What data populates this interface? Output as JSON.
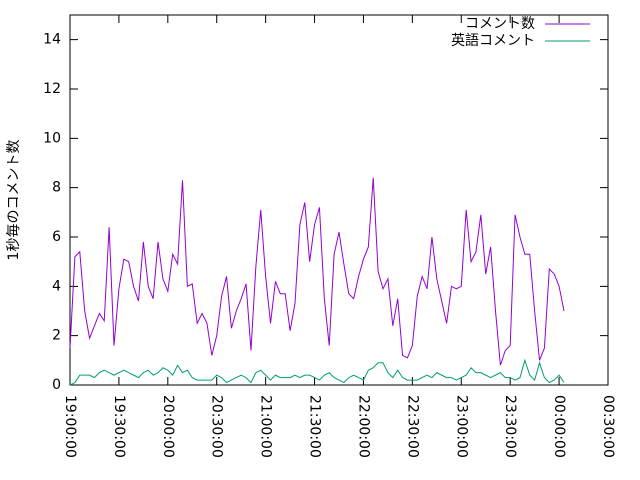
{
  "chart_data": {
    "type": "line",
    "ylabel": "1秒毎のコメント数",
    "x": [
      "19:00:00",
      "19:03:00",
      "19:06:00",
      "19:09:00",
      "19:12:00",
      "19:15:00",
      "19:18:00",
      "19:21:00",
      "19:24:00",
      "19:27:00",
      "19:30:00",
      "19:33:00",
      "19:36:00",
      "19:39:00",
      "19:42:00",
      "19:45:00",
      "19:48:00",
      "19:51:00",
      "19:54:00",
      "19:57:00",
      "20:00:00",
      "20:03:00",
      "20:06:00",
      "20:09:00",
      "20:12:00",
      "20:15:00",
      "20:18:00",
      "20:21:00",
      "20:24:00",
      "20:27:00",
      "20:30:00",
      "20:33:00",
      "20:36:00",
      "20:39:00",
      "20:42:00",
      "20:45:00",
      "20:48:00",
      "20:51:00",
      "20:54:00",
      "20:57:00",
      "21:00:00",
      "21:03:00",
      "21:06:00",
      "21:09:00",
      "21:12:00",
      "21:15:00",
      "21:18:00",
      "21:21:00",
      "21:24:00",
      "21:27:00",
      "21:30:00",
      "21:33:00",
      "21:36:00",
      "21:39:00",
      "21:42:00",
      "21:45:00",
      "21:48:00",
      "21:51:00",
      "21:54:00",
      "21:57:00",
      "22:00:00",
      "22:03:00",
      "22:06:00",
      "22:09:00",
      "22:12:00",
      "22:15:00",
      "22:18:00",
      "22:21:00",
      "22:24:00",
      "22:27:00",
      "22:30:00",
      "22:33:00",
      "22:36:00",
      "22:39:00",
      "22:42:00",
      "22:45:00",
      "22:48:00",
      "22:51:00",
      "22:54:00",
      "22:57:00",
      "23:00:00",
      "23:03:00",
      "23:06:00",
      "23:09:00",
      "23:12:00",
      "23:15:00",
      "23:18:00",
      "23:21:00",
      "23:24:00",
      "23:27:00",
      "23:30:00",
      "23:33:00",
      "23:36:00",
      "23:39:00",
      "23:42:00",
      "23:45:00",
      "23:48:00",
      "23:51:00",
      "23:54:00",
      "23:57:00",
      "00:00:00",
      "00:03:00"
    ],
    "series": [
      {
        "name": "コメント数",
        "color": "#9400d3",
        "values": [
          1.5,
          5.2,
          5.4,
          3,
          1.9,
          2.4,
          2.9,
          2.6,
          6.4,
          1.6,
          3.9,
          5.1,
          5,
          4,
          3.4,
          5.8,
          4,
          3.5,
          5.8,
          4.3,
          3.8,
          5.3,
          4.9,
          8.3,
          4,
          4.1,
          2.5,
          2.9,
          2.5,
          1.2,
          2,
          3.6,
          4.4,
          2.3,
          3,
          3.5,
          4.1,
          1.4,
          4.8,
          7.1,
          4.4,
          2.5,
          4.2,
          3.7,
          3.7,
          2.2,
          3.3,
          6.5,
          7.4,
          5,
          6.5,
          7.2,
          3.5,
          1.6,
          5.3,
          6.2,
          4.9,
          3.7,
          3.5,
          4.4,
          5.1,
          5.6,
          8.4,
          4.6,
          3.9,
          4.3,
          2.4,
          3.5,
          1.2,
          1.1,
          1.6,
          3.6,
          4.4,
          3.9,
          6,
          4.3,
          3.4,
          2.5,
          4,
          3.9,
          4,
          7.1,
          5,
          5.4,
          6.9,
          4.5,
          5.6,
          3,
          0.8,
          1.4,
          1.6,
          6.9,
          6,
          5.3,
          5.3,
          3,
          1,
          1.5,
          4.7,
          4.5,
          4,
          3
        ]
      },
      {
        "name": "英語コメント",
        "color": "#009e73",
        "values": [
          0,
          0.1,
          0.4,
          0.4,
          0.4,
          0.3,
          0.5,
          0.6,
          0.5,
          0.4,
          0.5,
          0.6,
          0.5,
          0.4,
          0.3,
          0.5,
          0.6,
          0.4,
          0.5,
          0.7,
          0.6,
          0.4,
          0.8,
          0.5,
          0.6,
          0.3,
          0.2,
          0.2,
          0.2,
          0.2,
          0.4,
          0.3,
          0.1,
          0.2,
          0.3,
          0.4,
          0.3,
          0.1,
          0.5,
          0.6,
          0.4,
          0.2,
          0.4,
          0.3,
          0.3,
          0.3,
          0.4,
          0.3,
          0.4,
          0.4,
          0.3,
          0.2,
          0.4,
          0.5,
          0.3,
          0.2,
          0.1,
          0.3,
          0.4,
          0.3,
          0.2,
          0.6,
          0.7,
          0.9,
          0.9,
          0.5,
          0.3,
          0.6,
          0.3,
          0.2,
          0.2,
          0.2,
          0.3,
          0.4,
          0.3,
          0.5,
          0.4,
          0.3,
          0.3,
          0.2,
          0.3,
          0.4,
          0.7,
          0.5,
          0.5,
          0.4,
          0.3,
          0.4,
          0.5,
          0.3,
          0.3,
          0.2,
          0.3,
          1,
          0.4,
          0.2,
          0.9,
          0.3,
          0.1,
          0.2,
          0.4,
          0.1
        ]
      }
    ],
    "xlim": [
      "19:00:00",
      "00:30:00"
    ],
    "xticks": [
      "19:00:00",
      "19:30:00",
      "20:00:00",
      "20:30:00",
      "21:00:00",
      "21:30:00",
      "22:00:00",
      "22:30:00",
      "23:00:00",
      "23:30:00",
      "00:00:00",
      "00:30:00"
    ],
    "ylim": [
      0,
      15
    ],
    "yticks": [
      0,
      2,
      4,
      6,
      8,
      10,
      12,
      14
    ],
    "legend": "top-right"
  }
}
